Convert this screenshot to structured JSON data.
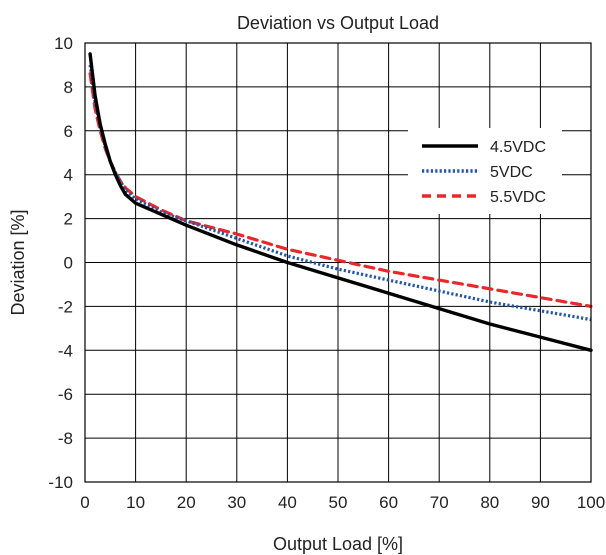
{
  "chart_data": {
    "type": "line",
    "title": "Deviation vs Output Load",
    "xlabel": "Output Load [%]",
    "ylabel": "Deviation [%]",
    "xlim": [
      0,
      100
    ],
    "ylim": [
      -10,
      10
    ],
    "xticks": [
      0,
      10,
      20,
      30,
      40,
      50,
      60,
      70,
      80,
      90,
      100
    ],
    "yticks": [
      -10,
      -8,
      -6,
      -4,
      -2,
      0,
      2,
      4,
      6,
      8,
      10
    ],
    "grid": true,
    "legend_position": "right",
    "series": [
      {
        "name": "4.5VDC",
        "color": "#000000",
        "style": "solid",
        "x": [
          1,
          2,
          3,
          4,
          5,
          6,
          7,
          8,
          10,
          15,
          20,
          30,
          40,
          50,
          60,
          70,
          80,
          90,
          100
        ],
        "y": [
          9.5,
          7.6,
          6.3,
          5.4,
          4.6,
          4.0,
          3.5,
          3.1,
          2.7,
          2.2,
          1.7,
          0.8,
          0.0,
          -0.7,
          -1.4,
          -2.1,
          -2.8,
          -3.4,
          -4.0
        ]
      },
      {
        "name": "5VDC",
        "color": "#2255a4",
        "style": "dotted",
        "x": [
          1,
          2,
          3,
          4,
          5,
          6,
          7,
          8,
          10,
          15,
          20,
          30,
          40,
          50,
          60,
          70,
          80,
          90,
          100
        ],
        "y": [
          9.0,
          7.3,
          6.2,
          5.3,
          4.6,
          4.1,
          3.7,
          3.3,
          2.9,
          2.3,
          1.9,
          1.1,
          0.3,
          -0.3,
          -0.8,
          -1.3,
          -1.8,
          -2.2,
          -2.6
        ]
      },
      {
        "name": "5.5VDC",
        "color": "#e8282b",
        "style": "dashed",
        "x": [
          1,
          2,
          3,
          4,
          5,
          6,
          7,
          8,
          10,
          15,
          20,
          30,
          40,
          50,
          60,
          70,
          80,
          90,
          100
        ],
        "y": [
          8.6,
          7.0,
          6.0,
          5.2,
          4.6,
          4.1,
          3.7,
          3.4,
          3.0,
          2.4,
          1.9,
          1.3,
          0.6,
          0.1,
          -0.4,
          -0.8,
          -1.2,
          -1.6,
          -2.0
        ]
      }
    ]
  }
}
